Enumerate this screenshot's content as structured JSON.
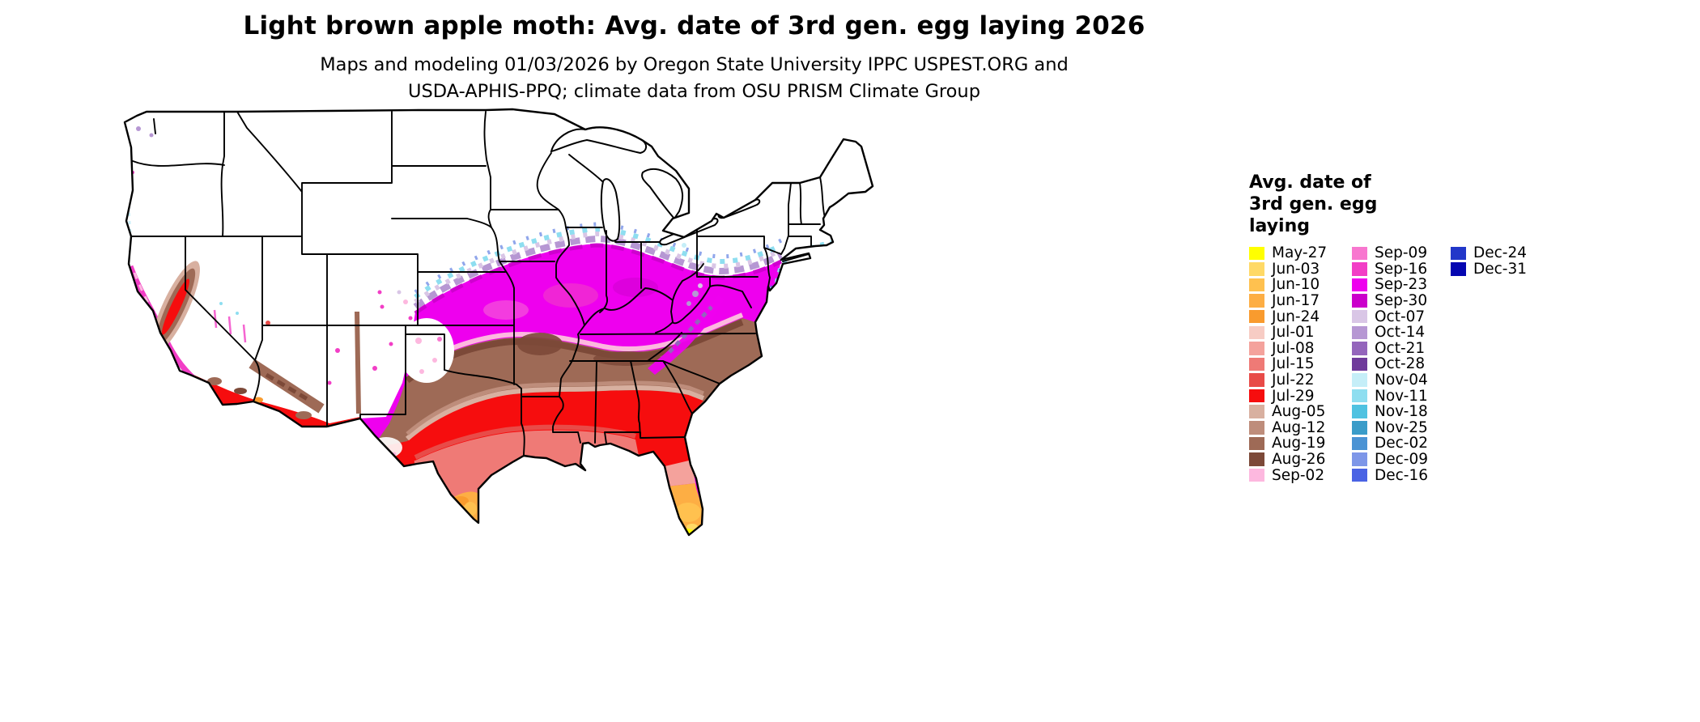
{
  "page": {
    "background": "#FFFFFF"
  },
  "header": {
    "title": "Light brown apple moth: Avg. date of 3rd gen. egg laying 2026",
    "subtitle_line1": "Maps and modeling 01/03/2026 by Oregon State University IPPC USPEST.ORG and",
    "subtitle_line2": "USDA-APHIS-PPQ; climate data from OSU PRISM Climate Group"
  },
  "legend": {
    "title_lines": [
      "Avg. date of",
      "3rd gen. egg",
      "laying"
    ],
    "columns": [
      {
        "entries": [
          {
            "label": "May-27",
            "color": "#FFFF00"
          },
          {
            "label": "Jun-03",
            "color": "#FFD966"
          },
          {
            "label": "Jun-10",
            "color": "#FFC14F"
          },
          {
            "label": "Jun-17",
            "color": "#FDAE44"
          },
          {
            "label": "Jun-24",
            "color": "#F99B2E"
          },
          {
            "label": "Jul-01",
            "color": "#F7CCC4"
          },
          {
            "label": "Jul-08",
            "color": "#F4A29C"
          },
          {
            "label": "Jul-15",
            "color": "#EF7A76"
          },
          {
            "label": "Jul-22",
            "color": "#E84B48"
          },
          {
            "label": "Jul-29",
            "color": "#F60D0E"
          },
          {
            "label": "Aug-05",
            "color": "#D8B0A0"
          },
          {
            "label": "Aug-12",
            "color": "#BE8D7B"
          },
          {
            "label": "Aug-19",
            "color": "#9E6A56"
          },
          {
            "label": "Aug-26",
            "color": "#7C4938"
          },
          {
            "label": "Sep-02",
            "color": "#FDB8DF"
          }
        ]
      },
      {
        "entries": [
          {
            "label": "Sep-09",
            "color": "#F877CF"
          },
          {
            "label": "Sep-16",
            "color": "#F23EC6"
          },
          {
            "label": "Sep-23",
            "color": "#EE00EE"
          },
          {
            "label": "Sep-30",
            "color": "#CB00CB"
          },
          {
            "label": "Oct-07",
            "color": "#D9C6E6"
          },
          {
            "label": "Oct-14",
            "color": "#B697D3"
          },
          {
            "label": "Oct-21",
            "color": "#9465BC"
          },
          {
            "label": "Oct-28",
            "color": "#6F3A9B"
          },
          {
            "label": "Nov-04",
            "color": "#C5EEF8"
          },
          {
            "label": "Nov-11",
            "color": "#8EDEF0"
          },
          {
            "label": "Nov-18",
            "color": "#4FC2E1"
          },
          {
            "label": "Nov-25",
            "color": "#3A9CC9"
          },
          {
            "label": "Dec-02",
            "color": "#4B93D4"
          },
          {
            "label": "Dec-09",
            "color": "#7D96E8"
          },
          {
            "label": "Dec-16",
            "color": "#4A63E4"
          }
        ]
      },
      {
        "entries": [
          {
            "label": "Dec-24",
            "color": "#2237C9"
          },
          {
            "label": "Dec-31",
            "color": "#0507B1"
          }
        ]
      }
    ]
  }
}
